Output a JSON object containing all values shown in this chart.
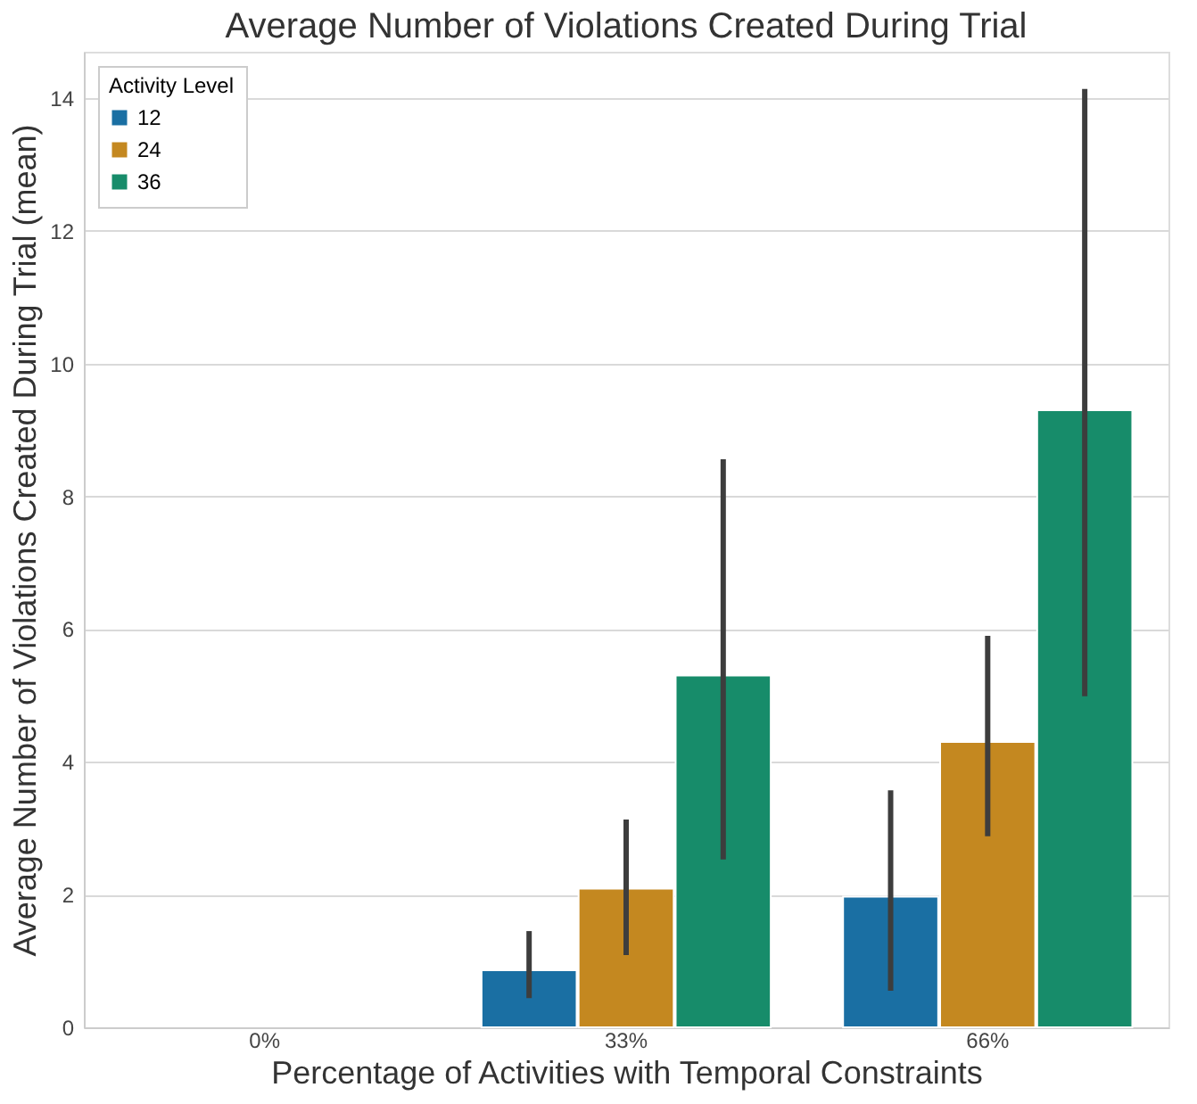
{
  "chart_data": {
    "type": "bar",
    "title": "Average Number of Violations Created During Trial",
    "xlabel": "Percentage of Activities with Temporal Constraints",
    "ylabel": "Average Number of Violations Created During Trial (mean)",
    "legend_title": "Activity Level",
    "categories": [
      "0%",
      "33%",
      "66%"
    ],
    "series": [
      {
        "name": "12",
        "color": "#1a6fa3",
        "values": [
          null,
          0.86,
          1.97
        ],
        "errors": [
          null,
          [
            0.44,
            1.45
          ],
          [
            0.55,
            3.57
          ]
        ]
      },
      {
        "name": "24",
        "color": "#c48820",
        "values": [
          null,
          2.09,
          4.3
        ],
        "errors": [
          null,
          [
            1.09,
            3.13
          ],
          [
            2.88,
            5.9
          ]
        ]
      },
      {
        "name": "36",
        "color": "#178c6a",
        "values": [
          null,
          5.3,
          9.3
        ],
        "errors": [
          null,
          [
            2.53,
            8.56
          ],
          [
            4.99,
            14.14
          ]
        ]
      }
    ],
    "ylim": [
      0,
      14.7
    ],
    "yticks": [
      0,
      2,
      4,
      6,
      8,
      10,
      12,
      14
    ],
    "grid": "y",
    "legend": "top left"
  }
}
